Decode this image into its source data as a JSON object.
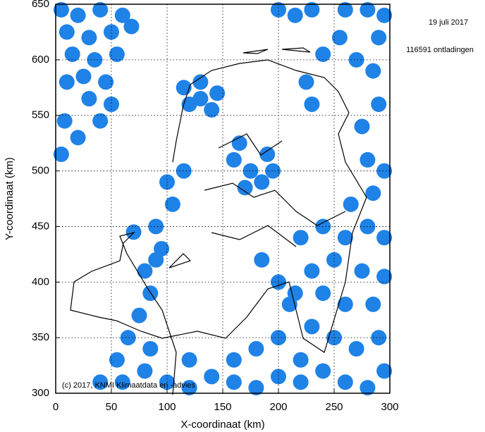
{
  "chart_data": {
    "type": "scatter",
    "date_label": "19 juli 2017",
    "count_label": "116591 ontladingen",
    "credit": "(c) 2017, KNMI Klimaatdata en -advies",
    "x_label": "X-coordinaat (km)",
    "y_label": "Y-coordinaat (km)",
    "color": "#1f82e6",
    "grid": true,
    "xlim": [
      0,
      300
    ],
    "xticks": [
      0,
      50,
      100,
      150,
      200,
      250,
      300
    ],
    "ylim": [
      300,
      650
    ],
    "yticks": [
      300,
      350,
      400,
      450,
      500,
      550,
      600,
      650
    ],
    "x": [
      5,
      20,
      40,
      60,
      10,
      30,
      50,
      68,
      15,
      35,
      55,
      25,
      45,
      10,
      30,
      50,
      8,
      20,
      5,
      40,
      115,
      130,
      145,
      120,
      140,
      130,
      160,
      175,
      190,
      170,
      185,
      165,
      195,
      40,
      55,
      65,
      75,
      85,
      80,
      95,
      90,
      105,
      100,
      115,
      85,
      60,
      80,
      70,
      90,
      100,
      120,
      140,
      160,
      180,
      200,
      220,
      120,
      160,
      180,
      200,
      220,
      240,
      260,
      280,
      295,
      230,
      250,
      270,
      290,
      210,
      240,
      260,
      285,
      230,
      250,
      275,
      295,
      260,
      280,
      295,
      265,
      285,
      280,
      295,
      275,
      290,
      285,
      270,
      255,
      240,
      225,
      230,
      215,
      200,
      185,
      290,
      295,
      220,
      240,
      200,
      215,
      230,
      260,
      280
    ],
    "y": [
      645,
      640,
      645,
      640,
      625,
      620,
      625,
      630,
      605,
      600,
      605,
      585,
      580,
      580,
      565,
      560,
      545,
      530,
      515,
      545,
      575,
      580,
      570,
      560,
      555,
      565,
      510,
      500,
      515,
      485,
      490,
      525,
      500,
      310,
      330,
      350,
      370,
      390,
      410,
      430,
      450,
      470,
      490,
      500,
      340,
      310,
      320,
      445,
      420,
      310,
      305,
      315,
      310,
      305,
      315,
      310,
      330,
      330,
      340,
      350,
      330,
      320,
      310,
      305,
      320,
      360,
      350,
      340,
      350,
      380,
      390,
      380,
      380,
      410,
      420,
      410,
      405,
      440,
      450,
      440,
      470,
      480,
      510,
      500,
      540,
      560,
      590,
      600,
      620,
      605,
      580,
      560,
      390,
      400,
      420,
      620,
      640,
      440,
      450,
      645,
      640,
      645,
      645,
      645
    ]
  }
}
